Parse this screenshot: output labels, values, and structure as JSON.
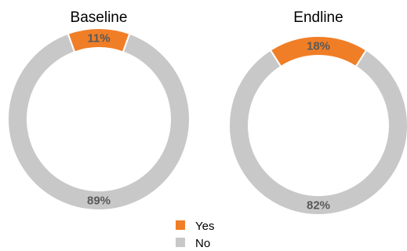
{
  "chart_data": [
    {
      "type": "pie",
      "title": "Baseline",
      "slices": [
        {
          "label": "Yes",
          "value": 11,
          "display": "11%"
        },
        {
          "label": "No",
          "value": 89,
          "display": "89%"
        }
      ]
    },
    {
      "type": "pie",
      "title": "Endline",
      "slices": [
        {
          "label": "Yes",
          "value": 18,
          "display": "18%"
        },
        {
          "label": "No",
          "value": 82,
          "display": "82%"
        }
      ]
    }
  ],
  "legend": {
    "placement": "bottom-center",
    "items": [
      {
        "label": "Yes",
        "color": "#f07e26"
      },
      {
        "label": "No",
        "color": "#c8c8c8"
      }
    ]
  },
  "colors": {
    "yes": "#f07e26",
    "no": "#c8c8c8",
    "yes_text": "#595959",
    "no_text": "#595959"
  }
}
